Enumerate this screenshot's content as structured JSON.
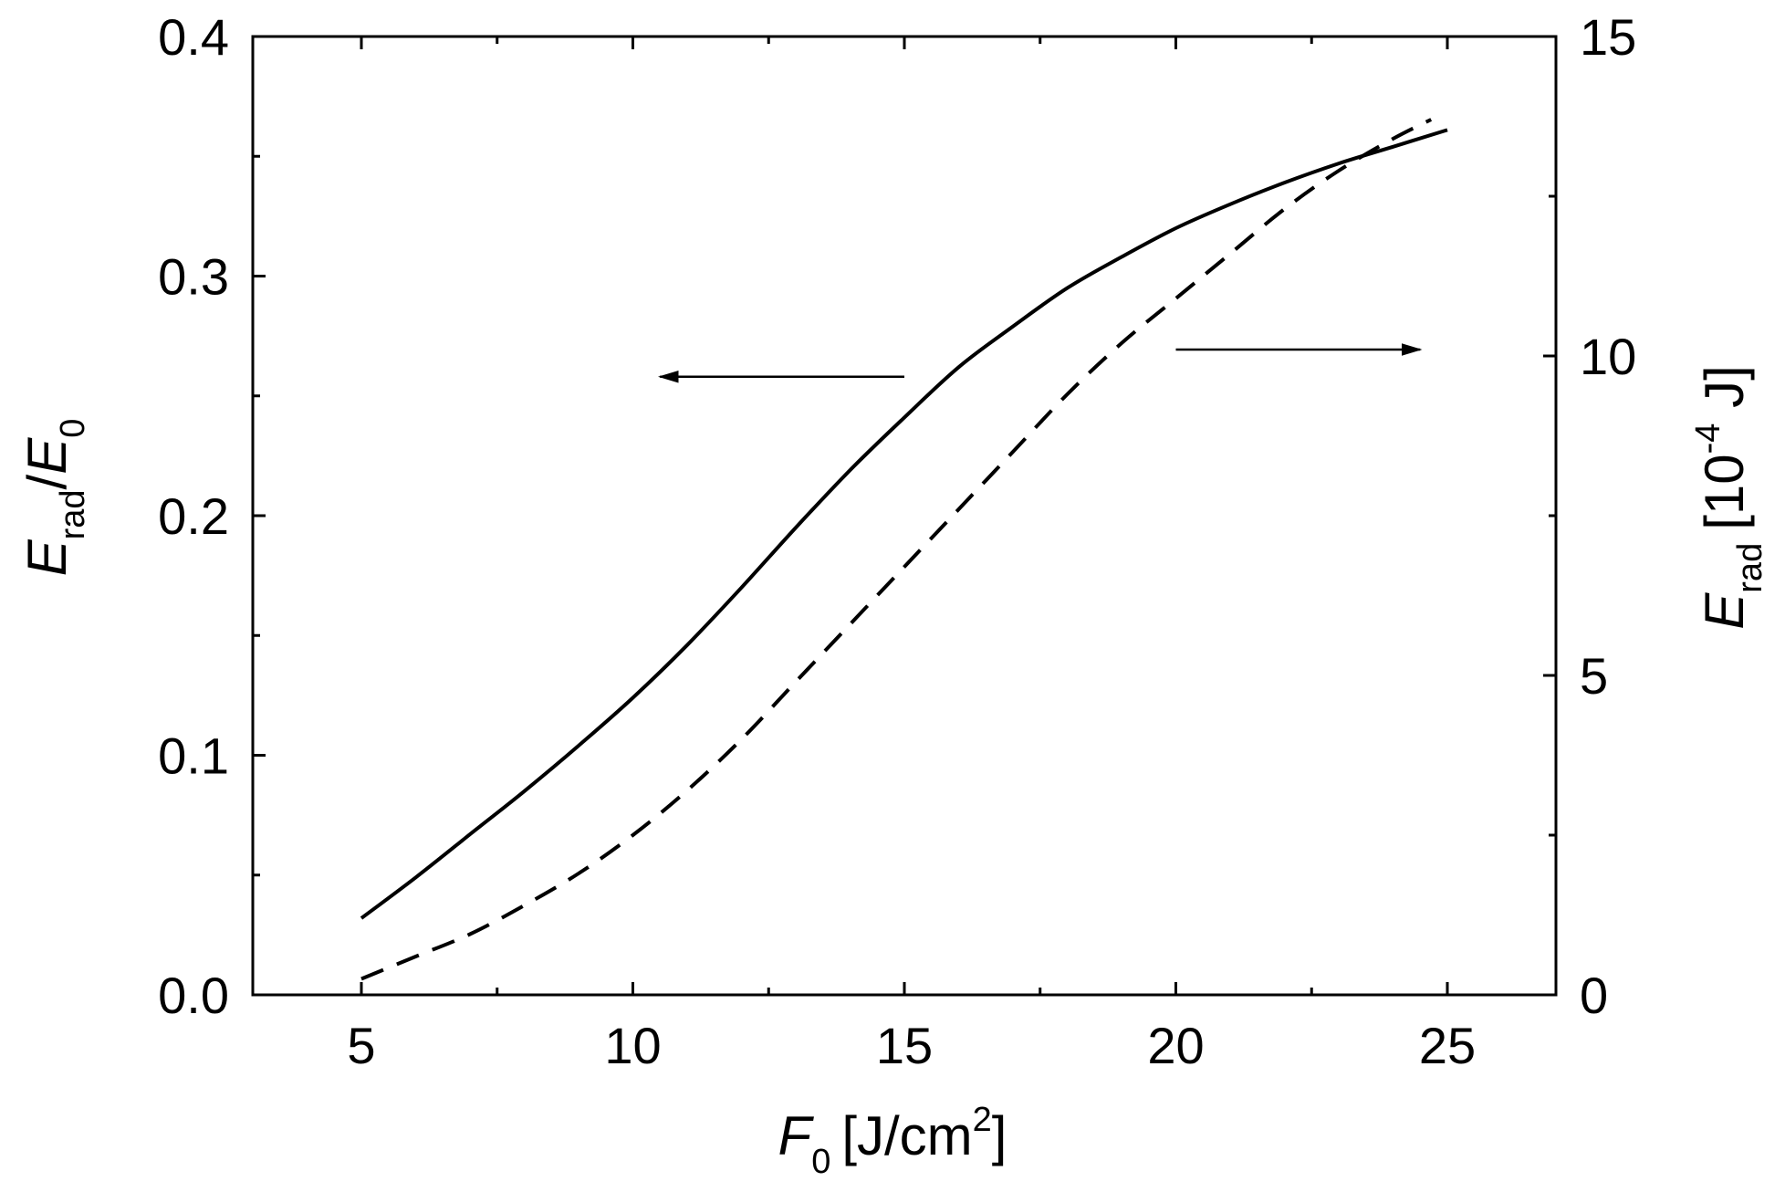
{
  "chart_data": {
    "type": "line",
    "title": "",
    "xlabel": {
      "symbol": "F",
      "sub": "0",
      "unit": "[J/cm",
      "sup": "2",
      "close": "]"
    },
    "ylabel_left": {
      "symbol1": "E",
      "sub1": "rad",
      "slash": "/",
      "symbol2": "E",
      "sub2": "0"
    },
    "ylabel_right": {
      "symbol": "E",
      "sub": "rad",
      "unit": "[10",
      "sup": "-4",
      "unitend": " J]"
    },
    "xlim": [
      3,
      27
    ],
    "ylim_left": [
      0,
      0.4
    ],
    "ylim_right": [
      0,
      15
    ],
    "x_ticks": [
      "5",
      "10",
      "15",
      "20",
      "25"
    ],
    "y_left_ticks": [
      "0.0",
      "0.1",
      "0.2",
      "0.3",
      "0.4"
    ],
    "y_right_ticks": [
      "0",
      "5",
      "10",
      "15"
    ],
    "grid": false,
    "series": [
      {
        "axis": "left",
        "style": "solid",
        "color": "#000000",
        "x": [
          5,
          6,
          7,
          8,
          9,
          10,
          11,
          12,
          13,
          14,
          15,
          16,
          17,
          18,
          19,
          20,
          21,
          22,
          23,
          24,
          25
        ],
        "y": [
          0.032,
          0.049,
          0.067,
          0.085,
          0.104,
          0.124,
          0.146,
          0.17,
          0.195,
          0.219,
          0.241,
          0.262,
          0.279,
          0.295,
          0.308,
          0.32,
          0.33,
          0.339,
          0.347,
          0.354,
          0.361
        ]
      },
      {
        "axis": "right",
        "style": "dashed",
        "color": "#000000",
        "x": [
          5,
          6,
          7,
          8,
          9,
          10,
          11,
          12,
          13,
          14,
          15,
          16,
          17,
          18,
          19,
          20,
          21,
          22,
          23,
          24,
          24.7
        ],
        "y": [
          0.25,
          0.6,
          0.95,
          1.4,
          1.9,
          2.5,
          3.2,
          4.0,
          4.9,
          5.8,
          6.7,
          7.6,
          8.5,
          9.4,
          10.2,
          10.9,
          11.6,
          12.3,
          12.9,
          13.4,
          13.7
        ]
      }
    ],
    "annotations": [
      {
        "type": "arrow",
        "direction": "left",
        "x_from": 15,
        "x_to": 10.5,
        "y": 0.258,
        "axis": "left"
      },
      {
        "type": "arrow",
        "direction": "right",
        "x_from": 20,
        "x_to": 24.5,
        "y": 10.1,
        "axis": "right"
      }
    ]
  }
}
